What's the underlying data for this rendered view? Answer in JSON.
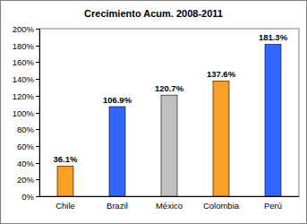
{
  "chart_data": {
    "type": "bar",
    "title": "Crecimiento Acum. 2008-2011",
    "categories": [
      "Chile",
      "Brazil",
      "México",
      "Colombia",
      "Perú"
    ],
    "values": [
      36.1,
      106.9,
      120.7,
      137.6,
      181.3
    ],
    "value_labels": [
      "36.1%",
      "106.9%",
      "120.7%",
      "137.6%",
      "181.3%"
    ],
    "colors": [
      "#f7a023",
      "#3366ff",
      "#bfbfbf",
      "#f7a023",
      "#3366ff"
    ],
    "ylim": [
      0,
      200
    ],
    "yticks": [
      {
        "value": 0,
        "label": "0%"
      },
      {
        "value": 20,
        "label": "20%"
      },
      {
        "value": 40,
        "label": "40%"
      },
      {
        "value": 60,
        "label": "60%"
      },
      {
        "value": 80,
        "label": "80%"
      },
      {
        "value": 100,
        "label": "100%"
      },
      {
        "value": 120,
        "label": "120%"
      },
      {
        "value": 140,
        "label": "140%"
      },
      {
        "value": 160,
        "label": "160%"
      },
      {
        "value": 180,
        "label": "180%"
      },
      {
        "value": 200,
        "label": "200%"
      }
    ],
    "grid": false,
    "data_labels": true
  }
}
